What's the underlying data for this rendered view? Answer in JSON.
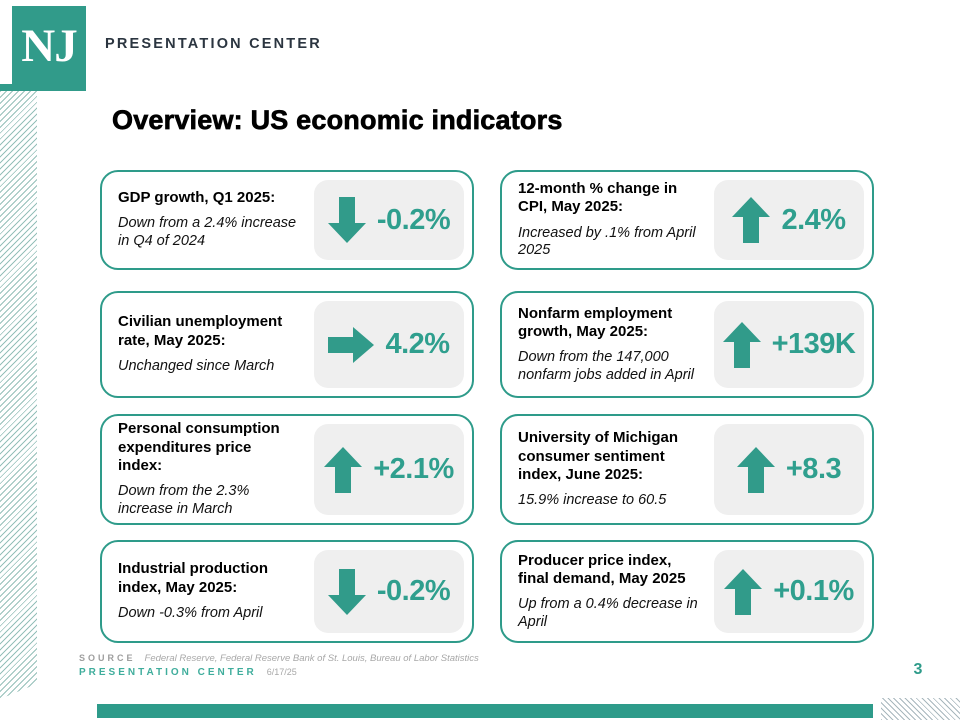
{
  "brand": {
    "logo_text": "NJ",
    "header_title": "PRESENTATION CENTER"
  },
  "page": {
    "title": "Overview: US economic indicators",
    "page_number": "3"
  },
  "cards": [
    {
      "title": "GDP growth, Q1 2025:",
      "desc": "Down from a 2.4% increase\nin Q4 of 2024",
      "direction": "down",
      "value": "-0.2%"
    },
    {
      "title": "12-month % change in\nCPI, May 2025:",
      "desc": "Increased by .1% from April\n2025",
      "direction": "up",
      "value": "2.4%"
    },
    {
      "title": "Civilian unemployment\nrate, May 2025:",
      "desc": "Unchanged since March",
      "direction": "right",
      "value": "4.2%"
    },
    {
      "title": "Nonfarm employment\ngrowth, May 2025:",
      "desc": "Down from the 147,000\nnonfarm jobs added in April",
      "direction": "up",
      "value": "+139K"
    },
    {
      "title": "Personal consumption\nexpenditures price\nindex:",
      "desc": "Down from the 2.3%\nincrease in March",
      "direction": "up",
      "value": "+2.1%"
    },
    {
      "title": "University of Michigan\nconsumer sentiment\nindex, June 2025:",
      "desc": "15.9% increase to 60.5",
      "direction": "up",
      "value": "+8.3"
    },
    {
      "title": "Industrial production\nindex, May 2025:",
      "desc": "Down -0.3% from April",
      "direction": "down",
      "value": "-0.2%"
    },
    {
      "title": "Producer price index,\nfinal demand, May 2025",
      "desc": "Up from a 0.4% decrease in\nApril",
      "direction": "up",
      "value": "+0.1%"
    }
  ],
  "footer": {
    "source_label": "SOURCE",
    "source_text": "Federal Reserve, Federal Reserve Bank of St. Louis, Bureau of Labor Statistics",
    "brand_label": "PRESENTATION CENTER",
    "date": "6/17/25"
  },
  "colors": {
    "teal": "#319B8A",
    "teal_footer": "#3FAD9C",
    "header_text": "#2B3540",
    "muted_gray": "#9E9E9E",
    "value_box_bg": "#EFEFEF"
  }
}
